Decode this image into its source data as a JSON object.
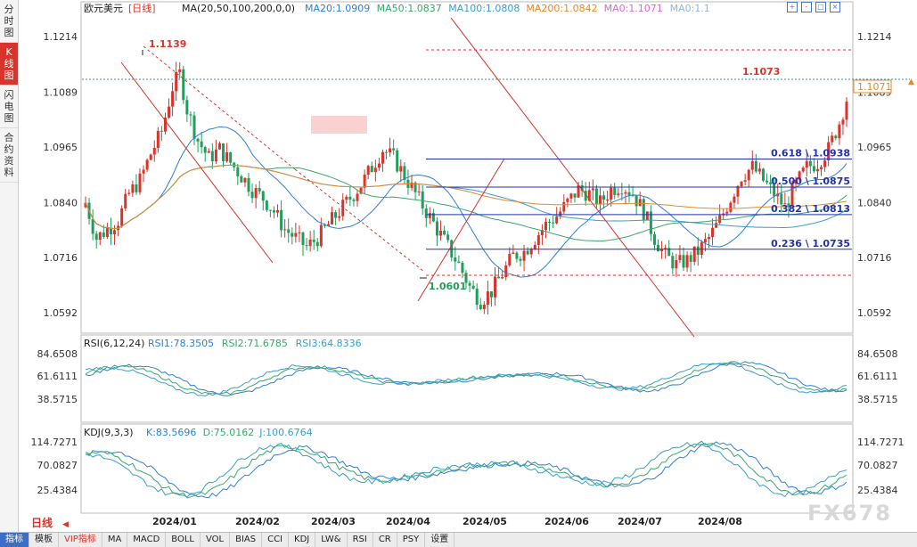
{
  "sidebar": {
    "tabs": [
      {
        "label": "分时图",
        "active": false
      },
      {
        "label": "K线图",
        "active": true
      },
      {
        "label": "闪电图",
        "active": false
      },
      {
        "label": "合约资料",
        "active": false
      }
    ]
  },
  "header": {
    "title": "欧元美元",
    "period": "[日线]",
    "ma_legend": "MA(20,50,100,200,0,0)",
    "ma_values": [
      {
        "label": "MA20:1.0909",
        "color": "#2f7fd6"
      },
      {
        "label": "MA50:1.0837",
        "color": "#3aa86c"
      },
      {
        "label": "MA100:1.0808",
        "color": "#3b9ec9"
      },
      {
        "label": "MA200:1.0842",
        "color": "#e08a2e"
      },
      {
        "label": "MA0:1.1071",
        "color": "#d96ad0"
      },
      {
        "label": "MA0:1.1",
        "color": "#8fb6e0"
      }
    ]
  },
  "price_axis": {
    "ticks": [
      "1.1214",
      "1.1089",
      "1.0965",
      "1.0840",
      "1.0716",
      "1.0592"
    ],
    "current": "1.1071"
  },
  "annotations": {
    "high": "1.1139",
    "low": "1.0601",
    "recent": "1.1073"
  },
  "fib_levels": [
    "0.618 \\ 1.0938",
    "0.500 \\ 1.0875",
    "0.382 \\ 1.0813",
    "0.236 \\ 1.0735"
  ],
  "rsi": {
    "title": "RSI(6,12,24)",
    "values": [
      {
        "label": "RSI1:78.3505",
        "color": "#2f7fd6"
      },
      {
        "label": "RSI2:71.6785",
        "color": "#3aa86c"
      },
      {
        "label": "RSI3:64.8336",
        "color": "#3b9ec9"
      }
    ],
    "ticks": [
      "84.6508",
      "61.6111",
      "38.5715"
    ]
  },
  "kdj": {
    "title": "KDJ(9,3,3)",
    "values": [
      {
        "label": "K:83.5696",
        "color": "#2f7fd6"
      },
      {
        "label": "D:75.0162",
        "color": "#3aa86c"
      },
      {
        "label": "J:100.6764",
        "color": "#3b9ec9"
      }
    ],
    "ticks": [
      "114.7271",
      "70.0827",
      "25.4384"
    ]
  },
  "time_axis": {
    "period_label": "日线",
    "labels": [
      "2024/01",
      "2024/02",
      "2024/03",
      "2024/04",
      "2024/05",
      "2024/06",
      "2024/07",
      "2024/08"
    ]
  },
  "toolbar": {
    "items": [
      "指标",
      "模板",
      "VIP指标",
      "MA",
      "MACD",
      "BOLL",
      "VOL",
      "BIAS",
      "CCI",
      "KDJ",
      "LW&",
      "RSI",
      "CR",
      "PSY",
      "设置"
    ]
  },
  "watermark": "FX678",
  "chart_data": {
    "type": "candlestick",
    "title": "欧元美元 日线",
    "price_range": [
      1.055,
      1.126
    ],
    "close_path": [
      [
        0,
        1.084
      ],
      [
        3,
        1.076
      ],
      [
        6,
        1.078
      ],
      [
        9,
        1.08
      ],
      [
        12,
        1.086
      ],
      [
        15,
        1.089
      ],
      [
        18,
        1.095
      ],
      [
        21,
        1.1
      ],
      [
        24,
        1.11
      ],
      [
        26,
        1.113
      ],
      [
        28,
        1.105
      ],
      [
        31,
        1.098
      ],
      [
        34,
        1.094
      ],
      [
        37,
        1.096
      ],
      [
        40,
        1.093
      ],
      [
        43,
        1.09
      ],
      [
        46,
        1.087
      ],
      [
        49,
        1.085
      ],
      [
        52,
        1.082
      ],
      [
        55,
        1.078
      ],
      [
        58,
        1.076
      ],
      [
        61,
        1.074
      ],
      [
        64,
        1.076
      ],
      [
        67,
        1.079
      ],
      [
        70,
        1.082
      ],
      [
        73,
        1.085
      ],
      [
        76,
        1.088
      ],
      [
        79,
        1.092
      ],
      [
        82,
        1.096
      ],
      [
        85,
        1.094
      ],
      [
        88,
        1.09
      ],
      [
        91,
        1.086
      ],
      [
        94,
        1.082
      ],
      [
        97,
        1.078
      ],
      [
        100,
        1.074
      ],
      [
        103,
        1.07
      ],
      [
        106,
        1.065
      ],
      [
        109,
        1.062
      ],
      [
        112,
        1.064
      ],
      [
        115,
        1.068
      ],
      [
        118,
        1.072
      ],
      [
        121,
        1.073
      ],
      [
        124,
        1.076
      ],
      [
        127,
        1.079
      ],
      [
        130,
        1.081
      ],
      [
        133,
        1.084
      ],
      [
        136,
        1.087
      ],
      [
        139,
        1.086
      ],
      [
        142,
        1.084
      ],
      [
        145,
        1.087
      ],
      [
        148,
        1.088
      ],
      [
        151,
        1.086
      ],
      [
        154,
        1.082
      ],
      [
        157,
        1.076
      ],
      [
        160,
        1.072
      ],
      [
        163,
        1.07
      ],
      [
        166,
        1.071
      ],
      [
        169,
        1.073
      ],
      [
        172,
        1.076
      ],
      [
        175,
        1.08
      ],
      [
        178,
        1.085
      ],
      [
        181,
        1.09
      ],
      [
        184,
        1.092
      ],
      [
        187,
        1.089
      ],
      [
        190,
        1.086
      ],
      [
        193,
        1.083
      ],
      [
        196,
        1.088
      ],
      [
        199,
        1.092
      ],
      [
        202,
        1.093
      ],
      [
        205,
        1.096
      ],
      [
        208,
        1.102
      ],
      [
        210,
        1.1073
      ]
    ],
    "series": [
      {
        "name": "MA20",
        "value": 1.0909
      },
      {
        "name": "MA50",
        "value": 1.0837
      },
      {
        "name": "MA100",
        "value": 1.0808
      },
      {
        "name": "MA200",
        "value": 1.0842
      }
    ],
    "rsi": {
      "RSI1": 78.3505,
      "RSI2": 71.6785,
      "RSI3": 64.8336
    },
    "kdj": {
      "K": 83.5696,
      "D": 75.0162,
      "J": 100.6764
    }
  }
}
